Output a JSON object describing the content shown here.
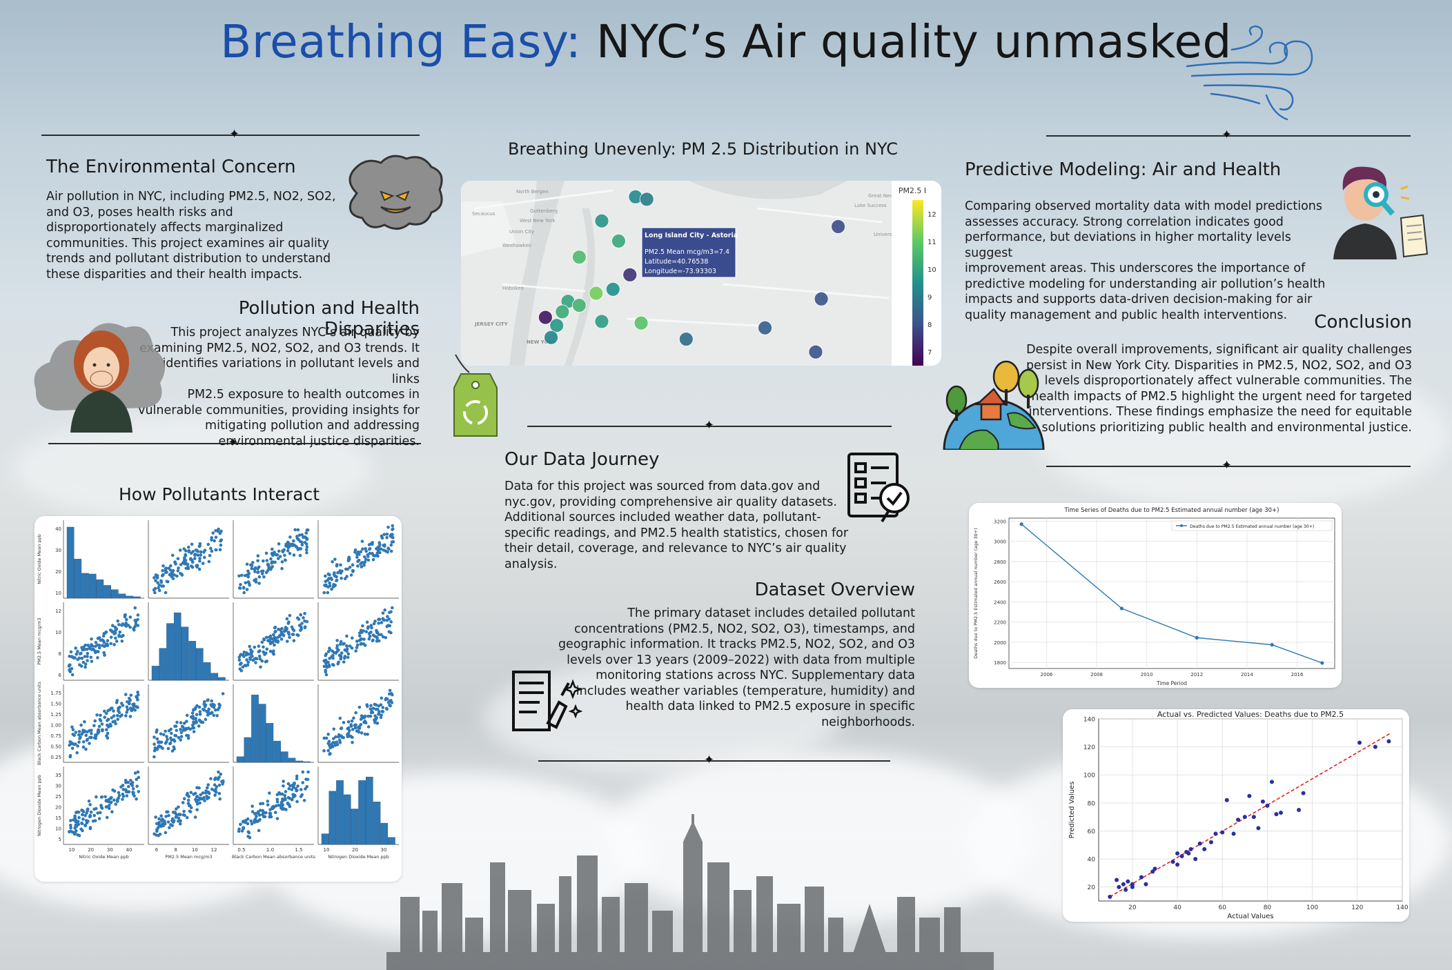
{
  "poster": {
    "title_blue": "Breathing Easy:",
    "title_dark": "NYC’s Air quality unmasked"
  },
  "env_concern": {
    "heading": "The Environmental Concern",
    "lines": [
      "Air pollution in NYC, including PM2.5, NO2, SO2,",
      "and O3, poses health risks and",
      "disproportionately affects marginalized",
      "communities. This project examines air quality",
      "trends and pollutant distribution to understand",
      "these disparities and their health impacts."
    ]
  },
  "disparities": {
    "heading": "Pollution and Health Disparities",
    "lines": [
      "This project analyzes NYC’s air quality by",
      "examining PM2.5, NO2, SO2, and O3 trends. It",
      "identifies variations in pollutant levels and links",
      "PM2.5 exposure to health outcomes in",
      "vulnerable communities, providing insights for",
      "mitigating pollution and addressing",
      "environmental justice disparities."
    ]
  },
  "pairplot": {
    "heading": "How Pollutants Interact",
    "vars": [
      "Nitric Oxide Mean ppb",
      "PM2.5 Mean mcg/m3",
      "Black Carbon Mean absorbance units",
      "Nitrogen Dioxide Mean ppb"
    ],
    "row_ticks": [
      [
        "10",
        "20",
        "30",
        "40"
      ],
      [
        "6",
        "8",
        "10",
        "12"
      ],
      [
        "0.25",
        "0.50",
        "0.75",
        "1.00",
        "1.25",
        "1.50",
        "1.75"
      ],
      [
        "5",
        "10",
        "15",
        "20",
        "25",
        "30",
        "35"
      ]
    ],
    "col_ticks": [
      [
        "10",
        "20",
        "30",
        "40"
      ],
      [
        "6",
        "8",
        "10",
        "12"
      ],
      [
        "0.5",
        "1.0",
        "1.5"
      ],
      [
        "10",
        "20",
        "30"
      ]
    ],
    "color": "#2f78b4"
  },
  "map": {
    "heading": "Breathing Unevenly: PM 2.5 Distribution in NYC",
    "colorbar_title": "PM2.5 I",
    "colorbar_ticks": [
      "12",
      "11",
      "10",
      "9",
      "8",
      "7"
    ],
    "colorbar_range": [
      6.5,
      12.5
    ],
    "place_labels": [
      "North Bergen",
      "Guttenberg",
      "Secaucus",
      "West New York",
      "Union City",
      "Weehawken",
      "Hoboken",
      "JERSEY CITY",
      "NEW YORK",
      "Great Neck",
      "Lake Success",
      "University Gardens"
    ],
    "tooltip": {
      "title": "Long Island City - Astoria",
      "line1": "PM2.5 Mean mcg/m3=7.4",
      "line2": "Latitude=40.76538",
      "line3": "Longitude=-73.93303"
    },
    "points": [
      {
        "lon": -73.925,
        "lat": 40.865,
        "pm": 9.3
      },
      {
        "lon": -73.915,
        "lat": 40.862,
        "pm": 9.0
      },
      {
        "lon": -73.955,
        "lat": 40.835,
        "pm": 9.6
      },
      {
        "lon": -73.94,
        "lat": 40.81,
        "pm": 10.1
      },
      {
        "lon": -73.975,
        "lat": 40.79,
        "pm": 10.6
      },
      {
        "lon": -73.93,
        "lat": 40.768,
        "pm": 7.4
      },
      {
        "lon": -73.945,
        "lat": 40.75,
        "pm": 9.5
      },
      {
        "lon": -73.96,
        "lat": 40.745,
        "pm": 11.2
      },
      {
        "lon": -73.985,
        "lat": 40.735,
        "pm": 10.0
      },
      {
        "lon": -73.975,
        "lat": 40.73,
        "pm": 10.4
      },
      {
        "lon": -73.99,
        "lat": 40.722,
        "pm": 10.2
      },
      {
        "lon": -73.955,
        "lat": 40.71,
        "pm": 9.8
      },
      {
        "lon": -73.92,
        "lat": 40.708,
        "pm": 10.8
      },
      {
        "lon": -74.005,
        "lat": 40.715,
        "pm": 6.9
      },
      {
        "lon": -73.995,
        "lat": 40.705,
        "pm": 9.7
      },
      {
        "lon": -74.0,
        "lat": 40.69,
        "pm": 9.2
      },
      {
        "lon": -73.88,
        "lat": 40.688,
        "pm": 8.6
      },
      {
        "lon": -73.81,
        "lat": 40.702,
        "pm": 8.3
      },
      {
        "lon": -73.76,
        "lat": 40.738,
        "pm": 8.1
      },
      {
        "lon": -73.765,
        "lat": 40.672,
        "pm": 8.0
      },
      {
        "lon": -73.745,
        "lat": 40.828,
        "pm": 7.9
      }
    ]
  },
  "journey": {
    "heading": "Our Data Journey",
    "lines": [
      "Data for this project was sourced from data.gov and",
      "nyc.gov, providing comprehensive air quality datasets.",
      "Additional sources included weather data, pollutant-",
      "specific readings, and PM2.5 health statistics, chosen for",
      "their detail, coverage, and relevance to NYC’s air quality",
      "analysis."
    ]
  },
  "overview": {
    "heading": "Dataset Overview",
    "lines": [
      "The primary dataset includes detailed pollutant",
      "concentrations (PM2.5, NO2, SO2, O3), timestamps, and",
      "geographic information. It tracks PM2.5, NO2, SO2, and O3",
      "levels over 13 years (2009–2022) with data from multiple",
      "monitoring stations across NYC. Supplementary data",
      "includes weather variables (temperature, humidity) and",
      "health data linked to PM2.5 exposure in specific",
      "neighborhoods."
    ]
  },
  "predictive": {
    "heading": "Predictive Modeling: Air and Health",
    "lines": [
      "Comparing observed mortality data with model predictions",
      "assesses accuracy. Strong correlation indicates good",
      "performance, but deviations in higher mortality levels suggest",
      "improvement areas. This underscores the importance of",
      "predictive modeling for understanding air pollution’s health",
      "impacts and supports data-driven decision-making for air",
      "quality management and public health interventions."
    ]
  },
  "conclusion": {
    "heading": "Conclusion",
    "lines": [
      "Despite overall improvements, significant air quality challenges",
      "persist in New York City. Disparities in PM2.5, NO2, SO2, and O3",
      "levels disproportionately affect vulnerable communities. The",
      "health impacts of PM2.5 highlight the urgent need for targeted",
      "interventions. These findings emphasize the need for equitable",
      "solutions prioritizing public health and environmental justice."
    ]
  },
  "chart_data": [
    {
      "type": "line",
      "title": "Time Series of Deaths due to PM2.5 Estimated annual number (age 30+)",
      "xlabel": "Time Period",
      "ylabel": "Deaths due to PM2.5 Estimated annual number (age 30+)",
      "legend": "Deaths due to PM2.5 Estimated annual number (age 30+)",
      "legend_position": "top-right",
      "x": [
        2005,
        2009,
        2012,
        2015,
        2017
      ],
      "y": [
        3170,
        2335,
        2045,
        1975,
        1795
      ],
      "xlim": [
        2004.5,
        2017.5
      ],
      "ylim": [
        1740,
        3230
      ],
      "xticks": [
        "2006",
        "2008",
        "2010",
        "2012",
        "2014",
        "2016"
      ],
      "yticks": [
        "1800",
        "2000",
        "2200",
        "2400",
        "2600",
        "2800",
        "3000",
        "3200"
      ],
      "color": "#2f78b4",
      "grid": true
    },
    {
      "type": "scatter",
      "title": "Actual vs. Predicted Values: Deaths due to PM2.5",
      "xlabel": "Actual Values",
      "ylabel": "Predicted Values",
      "xlim": [
        5,
        140
      ],
      "ylim": [
        10,
        140
      ],
      "xticks": [
        "20",
        "40",
        "60",
        "80",
        "100",
        "120",
        "140"
      ],
      "yticks": [
        "20",
        "40",
        "60",
        "80",
        "100",
        "120",
        "140"
      ],
      "reference_line": [
        [
          10,
          13
        ],
        [
          135,
          130
        ]
      ],
      "x": [
        10,
        13,
        14,
        16,
        17,
        18,
        20,
        20,
        24,
        26,
        29,
        30,
        38,
        40,
        40,
        42,
        44,
        45,
        46,
        48,
        50,
        52,
        55,
        57,
        60,
        62,
        65,
        67,
        70,
        72,
        74,
        76,
        78,
        80,
        82,
        84,
        86,
        94,
        96,
        121,
        128,
        134
      ],
      "y": [
        13,
        25,
        20,
        22,
        18,
        24,
        20,
        22,
        27,
        22,
        31,
        33,
        38,
        44,
        36,
        42,
        45,
        44,
        47,
        40,
        51,
        47,
        52,
        58,
        59,
        82,
        58,
        68,
        70,
        85,
        70,
        62,
        81,
        78,
        95,
        72,
        73,
        75,
        87,
        123,
        120,
        124
      ],
      "point_color": "#2a2f9e",
      "line_color": "#e02020",
      "grid": true
    }
  ]
}
